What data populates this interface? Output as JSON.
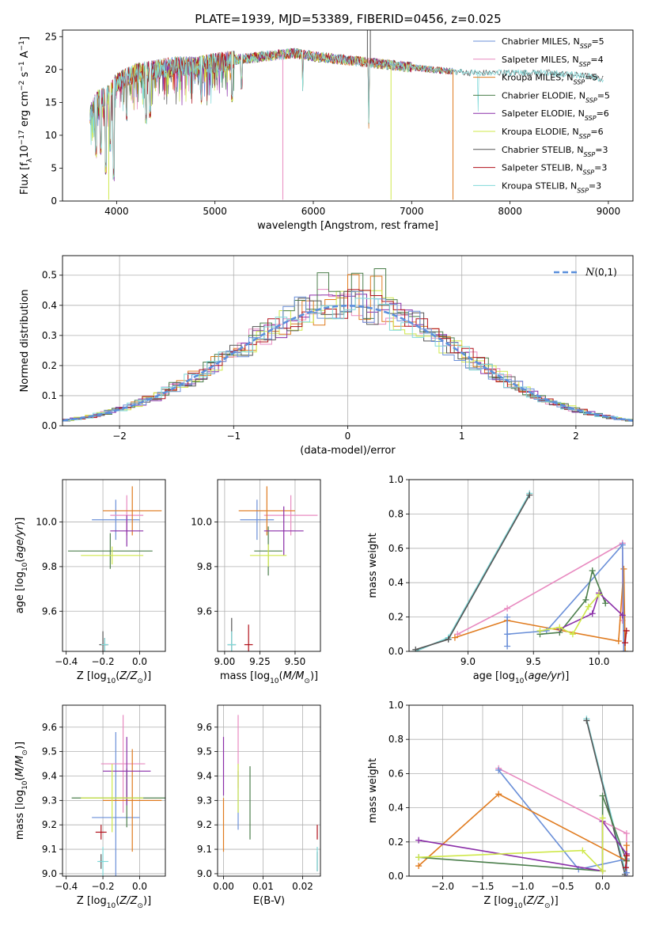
{
  "figure": {
    "title": "PLATE=1939, MJD=53389, FIBERID=0456, z=0.025"
  },
  "colors": {
    "models": [
      "#6a8fd8",
      "#e88ac0",
      "#e07b1f",
      "#4c7f4c",
      "#8a2ea8",
      "#cfe84a",
      "#555555",
      "#b0101a",
      "#7fd9d9"
    ]
  },
  "chart_data": [
    {
      "id": "spectrum",
      "type": "line",
      "xlabel": "wavelength [Angstrom, rest frame]",
      "ylabel": "Flux [f_λ 10^-17 erg cm^-2 s^-1 A^-1]",
      "xlim": [
        3450,
        9250
      ],
      "ylim": [
        0,
        26
      ],
      "xticks": [
        4000,
        5000,
        6000,
        7000,
        8000,
        9000
      ],
      "yticks": [
        0,
        5,
        10,
        15,
        20,
        25
      ],
      "grid": false,
      "legend_position": "top-right",
      "legend": [
        {
          "base": "Chabrier MILES, N",
          "sub": "SSP",
          "tail": "=5"
        },
        {
          "base": "Salpeter MILES, N",
          "sub": "SSP",
          "tail": "=4"
        },
        {
          "base": "Kroupa MILES, N",
          "sub": "SSP",
          "tail": "=5"
        },
        {
          "base": "Chabrier ELODIE, N",
          "sub": "SSP",
          "tail": "=5"
        },
        {
          "base": "Salpeter ELODIE, N",
          "sub": "SSP",
          "tail": "=6"
        },
        {
          "base": "Kroupa ELODIE, N",
          "sub": "SSP",
          "tail": "=6"
        },
        {
          "base": "Chabrier STELIB, N",
          "sub": "SSP",
          "tail": "=3"
        },
        {
          "base": "Salpeter STELIB, N",
          "sub": "SSP",
          "tail": "=3"
        },
        {
          "base": "Kroupa STELIB, N",
          "sub": "SSP",
          "tail": "=3"
        }
      ],
      "legend_color_index": [
        0,
        1,
        2,
        3,
        4,
        5,
        6,
        7,
        8
      ],
      "continuum": [
        [
          3730,
          13
        ],
        [
          3800,
          15.5
        ],
        [
          3900,
          16
        ],
        [
          4000,
          18
        ],
        [
          4200,
          19.5
        ],
        [
          4400,
          20
        ],
        [
          4600,
          20.5
        ],
        [
          4800,
          20.5
        ],
        [
          5000,
          21
        ],
        [
          5200,
          21.5
        ],
        [
          5500,
          22
        ],
        [
          5800,
          22.5
        ],
        [
          6000,
          22
        ],
        [
          6300,
          21.5
        ],
        [
          6600,
          21
        ],
        [
          6900,
          20.5
        ],
        [
          7200,
          20
        ],
        [
          7600,
          19.5
        ],
        [
          8000,
          19.5
        ],
        [
          8400,
          19.5
        ],
        [
          8800,
          19
        ],
        [
          8950,
          18.5
        ]
      ],
      "dips": [
        [
          3790,
          7.5
        ],
        [
          3840,
          8
        ],
        [
          3890,
          5
        ],
        [
          3935,
          8.5
        ],
        [
          3970,
          4
        ],
        [
          4102,
          13
        ],
        [
          4300,
          12.5
        ],
        [
          4340,
          13.5
        ],
        [
          4861,
          15.5
        ],
        [
          5175,
          16
        ],
        [
          5270,
          18
        ],
        [
          5890,
          17.5
        ],
        [
          6563,
          12
        ]
      ],
      "spikes": [
        [
          5690,
          0.2,
          1
        ],
        [
          6790,
          0.2,
          5
        ],
        [
          7420,
          0.2,
          2
        ],
        [
          3920,
          0.2,
          5
        ],
        [
          6550,
          26,
          6
        ],
        [
          6580,
          26,
          6
        ]
      ],
      "artifact_zone": [
        7500,
        7700
      ]
    },
    {
      "id": "residual-histogram",
      "type": "line",
      "xlabel": "(data-model)/error",
      "ylabel": "Normed distribution",
      "xlim": [
        -2.5,
        2.5
      ],
      "ylim": [
        0,
        0.565
      ],
      "xticks": [
        -2,
        -1,
        0,
        1,
        2
      ],
      "yticks": [
        0,
        0.1,
        0.2,
        0.3,
        0.4,
        0.5
      ],
      "grid": true,
      "legend_position": "top-right",
      "legend_label": "N(0,1)",
      "bin_width": 0.1,
      "peak_values": [
        0.44,
        0.46,
        0.52,
        0.54,
        0.43,
        0.45,
        0.46,
        0.49,
        0.41
      ]
    },
    {
      "id": "age-vs-Z",
      "type": "scatter",
      "xlabel": "Z [log10(Z/Z⊙)]",
      "ylabel": "age  [log10(age/yr)]",
      "xlim": [
        -0.42,
        0.14
      ],
      "ylim": [
        9.42,
        10.19
      ],
      "xticks": [
        -0.4,
        -0.2,
        0.0
      ],
      "yticks": [
        9.6,
        9.8,
        10.0
      ],
      "grid": true,
      "points": [
        {
          "c": 0,
          "x": -0.13,
          "y": 10.01,
          "xe": 0.13,
          "ye": 0.09
        },
        {
          "c": 1,
          "x": -0.07,
          "y": 10.03,
          "xe": 0.09,
          "ye": 0.09
        },
        {
          "c": 2,
          "x": -0.04,
          "y": 10.05,
          "xe": 0.16,
          "ye": 0.11
        },
        {
          "c": 3,
          "x": -0.16,
          "y": 9.87,
          "xe": 0.23,
          "ye": 0.08
        },
        {
          "c": 4,
          "x": -0.07,
          "y": 9.96,
          "xe": 0.09,
          "ye": 0.07
        },
        {
          "c": 5,
          "x": -0.15,
          "y": 9.85,
          "xe": 0.17,
          "ye": 0.04
        },
        {
          "c": 6,
          "x": -0.2,
          "y": 9.45,
          "xe": 0.02,
          "ye": 0.06
        },
        {
          "c": 7,
          "x": -0.19,
          "y": 9.45,
          "xe": 0.02,
          "ye": 0.03
        },
        {
          "c": 8,
          "x": -0.19,
          "y": 9.45,
          "xe": 0.02,
          "ye": 0.03
        }
      ]
    },
    {
      "id": "age-vs-mass",
      "type": "scatter",
      "xlabel": "mass [log10(M/M⊙)]",
      "ylabel": "",
      "xlim": [
        8.95,
        9.68
      ],
      "ylim": [
        9.42,
        10.19
      ],
      "xticks": [
        9.0,
        9.25,
        9.5
      ],
      "yticks": [
        9.6,
        9.8,
        10.0
      ],
      "grid": true,
      "points": [
        {
          "c": 0,
          "x": 9.23,
          "y": 10.01,
          "xe": 0.12,
          "ye": 0.09
        },
        {
          "c": 1,
          "x": 9.47,
          "y": 10.03,
          "xe": 0.19,
          "ye": 0.09
        },
        {
          "c": 2,
          "x": 9.3,
          "y": 10.05,
          "xe": 0.2,
          "ye": 0.11
        },
        {
          "c": 3,
          "x": 9.31,
          "y": 9.87,
          "xe": 0.1,
          "ye": 0.11
        },
        {
          "c": 4,
          "x": 9.42,
          "y": 9.96,
          "xe": 0.14,
          "ye": 0.11
        },
        {
          "c": 5,
          "x": 9.31,
          "y": 9.85,
          "xe": 0.13,
          "ye": 0.05
        },
        {
          "c": 6,
          "x": 9.05,
          "y": 9.45,
          "xe": 0.03,
          "ye": 0.12
        },
        {
          "c": 7,
          "x": 9.17,
          "y": 9.45,
          "xe": 0.03,
          "ye": 0.09
        },
        {
          "c": 8,
          "x": 9.05,
          "y": 9.45,
          "xe": 0.03,
          "ye": 0.06
        }
      ]
    },
    {
      "id": "weight-vs-age",
      "type": "line",
      "xlabel": "age  [log10(age/yr)]",
      "ylabel": "mass weight",
      "xlim": [
        8.55,
        10.26
      ],
      "ylim": [
        0,
        1.0
      ],
      "xticks": [
        9.0,
        9.5,
        10.0
      ],
      "yticks": [
        0.0,
        0.2,
        0.4,
        0.6,
        0.8,
        1.0
      ],
      "grid": true,
      "series": [
        {
          "c": 8,
          "points": [
            [
              8.6,
              0.0
            ],
            [
              8.85,
              0.08
            ],
            [
              9.47,
              0.92
            ]
          ]
        },
        {
          "c": 6,
          "points": [
            [
              8.6,
              0.01
            ],
            [
              8.85,
              0.07
            ],
            [
              9.47,
              0.91
            ]
          ]
        },
        {
          "c": 1,
          "points": [
            [
              8.92,
              0.1
            ],
            [
              9.3,
              0.25
            ],
            [
              10.18,
              0.63
            ],
            [
              10.18,
              0.18
            ]
          ]
        },
        {
          "c": 2,
          "points": [
            [
              8.9,
              0.08
            ],
            [
              9.3,
              0.18
            ],
            [
              10.15,
              0.06
            ],
            [
              10.19,
              0.48
            ],
            [
              10.2,
              0.0
            ]
          ]
        },
        {
          "c": 0,
          "points": [
            [
              9.3,
              0.03
            ],
            [
              9.3,
              0.2
            ],
            [
              9.3,
              0.1
            ],
            [
              9.6,
              0.12
            ],
            [
              10.18,
              0.62
            ],
            [
              10.19,
              0.0
            ]
          ]
        },
        {
          "c": 3,
          "points": [
            [
              9.55,
              0.1
            ],
            [
              9.7,
              0.11
            ],
            [
              9.9,
              0.3
            ],
            [
              9.95,
              0.47
            ],
            [
              10.05,
              0.28
            ]
          ]
        },
        {
          "c": 4,
          "points": [
            [
              9.7,
              0.13
            ],
            [
              9.95,
              0.22
            ],
            [
              10.0,
              0.34
            ],
            [
              10.18,
              0.21
            ]
          ]
        },
        {
          "c": 5,
          "points": [
            [
              9.55,
              0.12
            ],
            [
              9.7,
              0.14
            ],
            [
              9.8,
              0.1
            ],
            [
              9.92,
              0.26
            ],
            [
              10.0,
              0.33
            ]
          ]
        },
        {
          "c": 7,
          "points": [
            [
              10.2,
              0.05
            ],
            [
              10.21,
              0.12
            ]
          ]
        }
      ]
    },
    {
      "id": "mass-vs-Z",
      "type": "scatter",
      "xlabel": "Z [log10(Z/Z⊙)]",
      "ylabel": "mass [log10(M/M⊙)]",
      "xlim": [
        -0.42,
        0.14
      ],
      "ylim": [
        8.99,
        9.69
      ],
      "xticks": [
        -0.4,
        -0.2,
        0.0
      ],
      "yticks": [
        9.0,
        9.1,
        9.2,
        9.3,
        9.4,
        9.5,
        9.6
      ],
      "grid": true,
      "points": [
        {
          "c": 0,
          "x": -0.13,
          "y": 9.23,
          "xe": 0.13,
          "ye": 0.35
        },
        {
          "c": 1,
          "x": -0.09,
          "y": 9.45,
          "xe": 0.12,
          "ye": 0.2
        },
        {
          "c": 2,
          "x": -0.04,
          "y": 9.3,
          "xe": 0.16,
          "ye": 0.21
        },
        {
          "c": 3,
          "x": -0.07,
          "y": 9.31,
          "xe": 0.3,
          "ye": 0.12
        },
        {
          "c": 4,
          "x": -0.07,
          "y": 9.42,
          "xe": 0.13,
          "ye": 0.14
        },
        {
          "c": 5,
          "x": -0.15,
          "y": 9.31,
          "xe": 0.17,
          "ye": 0.14
        },
        {
          "c": 6,
          "x": -0.21,
          "y": 9.05,
          "xe": 0.01,
          "ye": 0.03
        },
        {
          "c": 7,
          "x": -0.21,
          "y": 9.17,
          "xe": 0.03,
          "ye": 0.03
        },
        {
          "c": 8,
          "x": -0.2,
          "y": 9.05,
          "xe": 0.03,
          "ye": 0.06
        }
      ]
    },
    {
      "id": "mass-vs-EBV",
      "type": "scatter",
      "xlabel": "E(B-V)",
      "ylabel": "",
      "xlim": [
        -0.0015,
        0.0245
      ],
      "ylim": [
        8.99,
        9.69
      ],
      "xticks": [
        0.0,
        0.01,
        0.02
      ],
      "yticks": [
        9.0,
        9.1,
        9.2,
        9.3,
        9.4,
        9.5,
        9.6
      ],
      "grid": true,
      "points": [
        {
          "c": 0,
          "x": 0.0037,
          "y": 9.3,
          "xe": 0,
          "ye": 0.12
        },
        {
          "c": 1,
          "x": 0.0037,
          "y": 9.5,
          "xe": 0,
          "ye": 0.15
        },
        {
          "c": 2,
          "x": 0.0,
          "y": 9.2,
          "xe": 0,
          "ye": 0.11
        },
        {
          "c": 3,
          "x": 0.0067,
          "y": 9.29,
          "xe": 0,
          "ye": 0.15
        },
        {
          "c": 4,
          "x": 0.0,
          "y": 9.44,
          "xe": 0,
          "ye": 0.12
        },
        {
          "c": 5,
          "x": 0.0037,
          "y": 9.35,
          "xe": 0,
          "ye": 0.1
        },
        {
          "c": 6,
          "x": 0.0237,
          "y": 9.05,
          "xe": 0,
          "ye": 0.04
        },
        {
          "c": 7,
          "x": 0.0237,
          "y": 9.17,
          "xe": 0,
          "ye": 0.03
        },
        {
          "c": 8,
          "x": 0.0237,
          "y": 9.06,
          "xe": 0,
          "ye": 0.05
        }
      ]
    },
    {
      "id": "weight-vs-Z",
      "type": "line",
      "xlabel": "Z [log10(Z/Z⊙)]",
      "ylabel": "mass weight",
      "xlim": [
        -2.42,
        0.38
      ],
      "ylim": [
        0,
        1.0
      ],
      "xticks": [
        -2.0,
        -1.5,
        -1.0,
        -0.5,
        0.0
      ],
      "yticks": [
        0.0,
        0.2,
        0.4,
        0.6,
        0.8,
        1.0
      ],
      "grid": true,
      "series": [
        {
          "c": 8,
          "points": [
            [
              -0.2,
              0.92
            ],
            [
              0.3,
              0.0
            ]
          ]
        },
        {
          "c": 6,
          "points": [
            [
              -0.2,
              0.91
            ],
            [
              0.28,
              0.01
            ]
          ]
        },
        {
          "c": 1,
          "points": [
            [
              -1.3,
              0.63
            ],
            [
              0.0,
              0.32
            ],
            [
              0.3,
              0.25
            ],
            [
              0.3,
              0.0
            ]
          ]
        },
        {
          "c": 0,
          "points": [
            [
              -1.3,
              0.62
            ],
            [
              -0.3,
              0.04
            ],
            [
              0.3,
              0.1
            ],
            [
              0.3,
              0.02
            ]
          ]
        },
        {
          "c": 2,
          "points": [
            [
              -2.3,
              0.06
            ],
            [
              -1.3,
              0.48
            ],
            [
              0.3,
              0.09
            ],
            [
              0.3,
              0.18
            ]
          ]
        },
        {
          "c": 3,
          "points": [
            [
              -2.3,
              0.11
            ],
            [
              0.0,
              0.03
            ],
            [
              0.0,
              0.47
            ],
            [
              0.3,
              0.09
            ]
          ]
        },
        {
          "c": 4,
          "points": [
            [
              -2.3,
              0.21
            ],
            [
              0.0,
              0.03
            ],
            [
              0.0,
              0.32
            ],
            [
              0.3,
              0.13
            ]
          ]
        },
        {
          "c": 5,
          "points": [
            [
              -2.3,
              0.11
            ],
            [
              -0.25,
              0.15
            ],
            [
              0.0,
              0.03
            ],
            [
              0.0,
              0.34
            ]
          ]
        },
        {
          "c": 7,
          "points": [
            [
              0.29,
              0.05
            ],
            [
              0.3,
              0.12
            ]
          ]
        }
      ]
    }
  ]
}
